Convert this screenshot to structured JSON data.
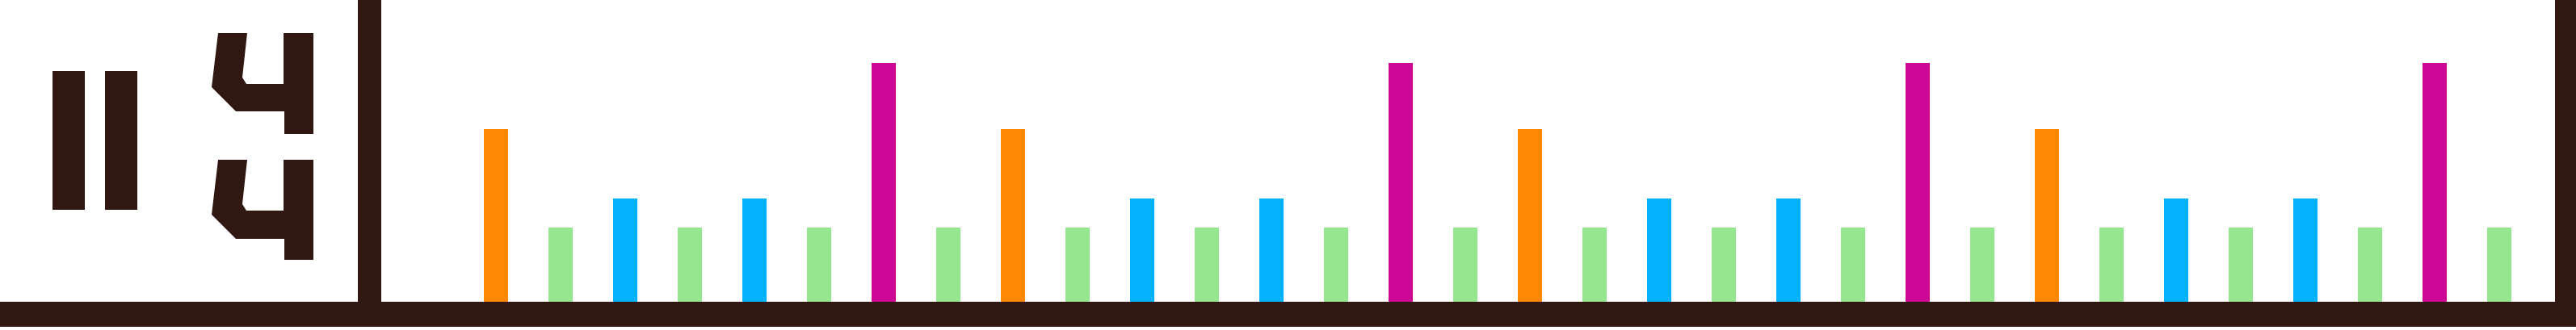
{
  "colors": {
    "background": "#ffffff",
    "frame": "#311711",
    "orange": "#ff8904",
    "green": "#95e68f",
    "blue": "#03b1fc",
    "magenta": "#cd0795"
  },
  "time_signature": {
    "glyph": "pause-bars-and-two-fours-icon"
  },
  "pattern": {
    "bars": [
      {
        "color": "orange",
        "level": 0.7
      },
      {
        "color": "green",
        "level": 0.3
      },
      {
        "color": "blue",
        "level": 0.42
      },
      {
        "color": "green",
        "level": 0.3
      },
      {
        "color": "blue",
        "level": 0.42
      },
      {
        "color": "green",
        "level": 0.3
      },
      {
        "color": "magenta",
        "level": 0.97
      },
      {
        "color": "green",
        "level": 0.3
      },
      {
        "color": "orange",
        "level": 0.7
      },
      {
        "color": "green",
        "level": 0.3
      },
      {
        "color": "blue",
        "level": 0.42
      },
      {
        "color": "green",
        "level": 0.3
      },
      {
        "color": "blue",
        "level": 0.42
      },
      {
        "color": "green",
        "level": 0.3
      },
      {
        "color": "magenta",
        "level": 0.97
      },
      {
        "color": "green",
        "level": 0.3
      },
      {
        "color": "orange",
        "level": 0.7
      },
      {
        "color": "green",
        "level": 0.3
      },
      {
        "color": "blue",
        "level": 0.42
      },
      {
        "color": "green",
        "level": 0.3
      },
      {
        "color": "blue",
        "level": 0.42
      },
      {
        "color": "green",
        "level": 0.3
      },
      {
        "color": "magenta",
        "level": 0.97
      },
      {
        "color": "green",
        "level": 0.3
      },
      {
        "color": "orange",
        "level": 0.7
      },
      {
        "color": "green",
        "level": 0.3
      },
      {
        "color": "blue",
        "level": 0.42
      },
      {
        "color": "green",
        "level": 0.3
      },
      {
        "color": "blue",
        "level": 0.42
      },
      {
        "color": "green",
        "level": 0.3
      },
      {
        "color": "magenta",
        "level": 0.97
      },
      {
        "color": "green",
        "level": 0.3
      }
    ]
  }
}
